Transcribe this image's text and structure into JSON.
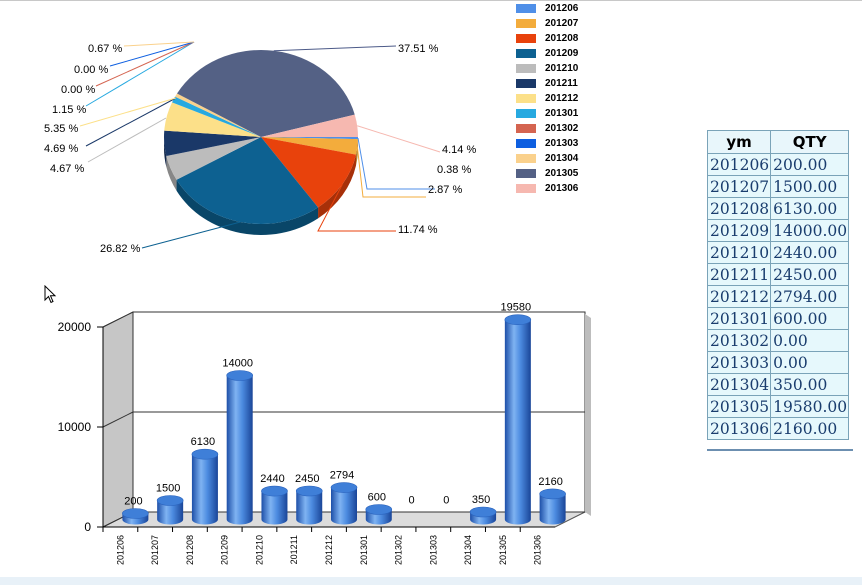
{
  "legend": {
    "items": [
      {
        "label": "201206",
        "color": "#4f8fe8"
      },
      {
        "label": "201207",
        "color": "#f3ac3c"
      },
      {
        "label": "201208",
        "color": "#e8420c"
      },
      {
        "label": "201209",
        "color": "#0d6191"
      },
      {
        "label": "201210",
        "color": "#bcbcbc"
      },
      {
        "label": "201211",
        "color": "#1a3868"
      },
      {
        "label": "201212",
        "color": "#fce089"
      },
      {
        "label": "201301",
        "color": "#27a9e0"
      },
      {
        "label": "201302",
        "color": "#d46450"
      },
      {
        "label": "201303",
        "color": "#0e5fe0"
      },
      {
        "label": "201304",
        "color": "#fad18c"
      },
      {
        "label": "201305",
        "color": "#546185"
      },
      {
        "label": "201306",
        "color": "#f6b8b0"
      }
    ]
  },
  "table": {
    "headers": [
      "ym",
      "QTY"
    ],
    "rows": [
      [
        "201206",
        "200.00"
      ],
      [
        "201207",
        "1500.00"
      ],
      [
        "201208",
        "6130.00"
      ],
      [
        "201209",
        "14000.00"
      ],
      [
        "201210",
        "2440.00"
      ],
      [
        "201211",
        "2450.00"
      ],
      [
        "201212",
        "2794.00"
      ],
      [
        "201301",
        "600.00"
      ],
      [
        "201302",
        "0.00"
      ],
      [
        "201303",
        "0.00"
      ],
      [
        "201304",
        "350.00"
      ],
      [
        "201305",
        "19580.00"
      ],
      [
        "201306",
        "2160.00"
      ]
    ]
  },
  "chart_data": [
    {
      "type": "pie",
      "categories": [
        "201206",
        "201207",
        "201208",
        "201209",
        "201210",
        "201211",
        "201212",
        "201301",
        "201302",
        "201303",
        "201304",
        "201305",
        "201306"
      ],
      "values": [
        0.38,
        2.87,
        11.74,
        26.82,
        4.67,
        4.69,
        5.35,
        1.15,
        0.0,
        0.0,
        0.67,
        37.51,
        4.14
      ],
      "data_labels": [
        "0.38 %",
        "2.87 %",
        "11.74 %",
        "26.82 %",
        "4.67 %",
        "4.69 %",
        "5.35 %",
        "1.15 %",
        "0.00 %",
        "0.00 %",
        "0.67 %",
        "37.51 %",
        "4.14 %"
      ],
      "colors": [
        "#4f8fe8",
        "#f3ac3c",
        "#e8420c",
        "#0d6191",
        "#bcbcbc",
        "#1a3868",
        "#fce089",
        "#27a9e0",
        "#d46450",
        "#0e5fe0",
        "#fad18c",
        "#546185",
        "#f6b8b0"
      ],
      "legend": "right",
      "style": "3d"
    },
    {
      "type": "bar",
      "categories": [
        "201206",
        "201207",
        "201208",
        "201209",
        "201210",
        "201211",
        "201212",
        "201301",
        "201302",
        "201303",
        "201304",
        "201305",
        "201306"
      ],
      "values": [
        200,
        1500,
        6130,
        14000,
        2440,
        2450,
        2794,
        600,
        0,
        0,
        350,
        19580,
        2160
      ],
      "data_labels": [
        "200",
        "1500",
        "6130",
        "14000",
        "2440",
        "2450",
        "2794",
        "600",
        "0",
        "0",
        "350",
        "19580",
        "2160"
      ],
      "yticks": [
        "0",
        "10000",
        "20000"
      ],
      "ytick_values": [
        0,
        10000,
        20000
      ],
      "ylim": [
        0,
        20000
      ],
      "grid": true,
      "style": "3d-cylinder",
      "bar_color": "#3a7bd5"
    }
  ]
}
